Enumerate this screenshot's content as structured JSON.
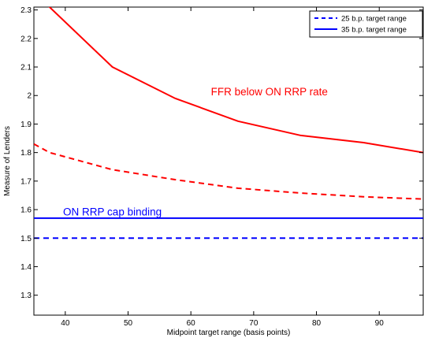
{
  "chart_data": {
    "type": "line",
    "title": "",
    "xlabel": "Midpoint target range (basis points)",
    "ylabel": "Measure of Lenders",
    "xlim": [
      35,
      97
    ],
    "ylim": [
      1.23,
      2.31
    ],
    "x_ticks": [
      40,
      50,
      60,
      70,
      80,
      90
    ],
    "y_ticks": [
      1.3,
      1.4,
      1.5,
      1.6,
      1.7,
      1.8,
      1.9,
      2.0,
      2.1,
      2.2,
      2.3
    ],
    "y_tick_labels": [
      "1.3",
      "1.4",
      "1.5",
      "1.6",
      "1.7",
      "1.8",
      "1.9",
      "2",
      "2.1",
      "2.2",
      "2.3"
    ],
    "grid": false,
    "legend_position": "top-right",
    "legend": [
      {
        "label": "25 b.p. target range",
        "style": "dashed",
        "color": "#0000ff"
      },
      {
        "label": "35 b.p. target range",
        "style": "solid",
        "color": "#0000ff"
      }
    ],
    "series": [
      {
        "style": "solid",
        "color": "#ff0000",
        "x": [
          35,
          37.5,
          47.5,
          57.5,
          67.5,
          77.5,
          87.5,
          97
        ],
        "y": [
          2.36,
          2.31,
          2.1,
          1.99,
          1.91,
          1.86,
          1.835,
          1.8
        ]
      },
      {
        "style": "dashed",
        "color": "#ff0000",
        "x": [
          35,
          37.5,
          47.5,
          57.5,
          67.5,
          77.5,
          87.5,
          97
        ],
        "y": [
          1.83,
          1.8,
          1.74,
          1.705,
          1.675,
          1.658,
          1.645,
          1.637
        ]
      },
      {
        "style": "solid",
        "color": "#0000ff",
        "x": [
          35,
          97
        ],
        "y": [
          1.57,
          1.57
        ]
      },
      {
        "style": "dashed",
        "color": "#0000ff",
        "x": [
          35,
          97
        ],
        "y": [
          1.5,
          1.5
        ]
      }
    ],
    "annotations": [
      {
        "text": "FFR below ON RRP rate",
        "color": "#ff0000",
        "x": 72.5,
        "y": 2.0
      },
      {
        "text": "ON RRP cap binding",
        "color": "#0000ff",
        "x": 47.5,
        "y": 1.58
      }
    ]
  }
}
